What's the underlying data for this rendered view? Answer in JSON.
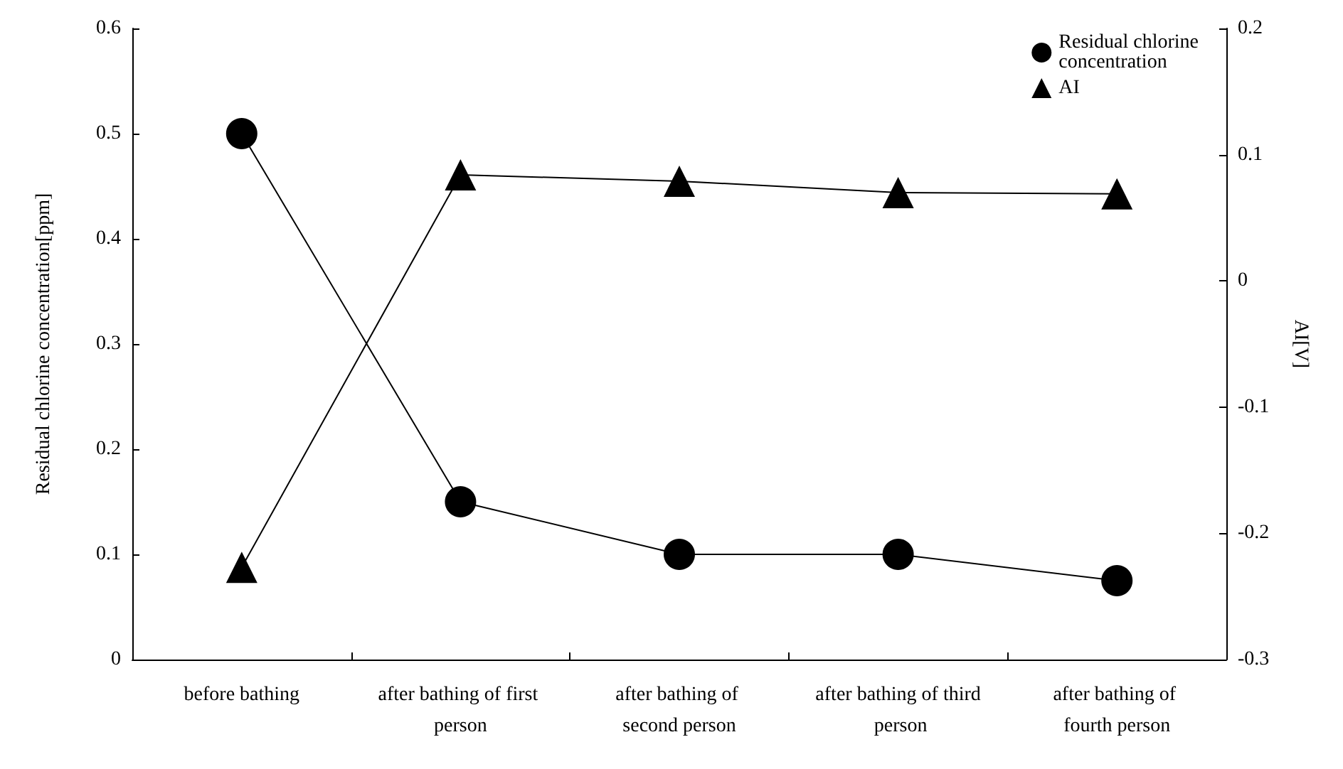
{
  "chart_data": {
    "type": "line",
    "ylabel": "Residual chlorine concentration[ppm]",
    "y2label": "AI[V]",
    "categories": [
      "before bathing",
      "after bathing of first person",
      "after bathing of second person",
      "after bathing of third person",
      "after bathing of fourth person"
    ],
    "series": [
      {
        "name": "Residual chlorine concentration",
        "color": "#000000",
        "marker": "circle",
        "values": [
          0.5,
          0.15,
          0.1,
          0.1,
          0.075
        ]
      },
      {
        "name": "AI",
        "color": "#000000",
        "marker": "triangle",
        "axis": "y2",
        "values": [
          -0.227,
          0.084,
          0.079,
          0.07,
          0.069
        ]
      }
    ],
    "ylim": [
      0,
      0.6
    ],
    "yticks": [
      0,
      0.1,
      0.2,
      0.3,
      0.4,
      0.5,
      0.6
    ],
    "y2lim": [
      -0.3,
      0.2
    ],
    "y2ticks": [
      -0.3,
      -0.2,
      -0.1,
      0,
      0.1,
      0.2
    ],
    "legend": "top right",
    "grid": false,
    "line_style": "solid"
  }
}
